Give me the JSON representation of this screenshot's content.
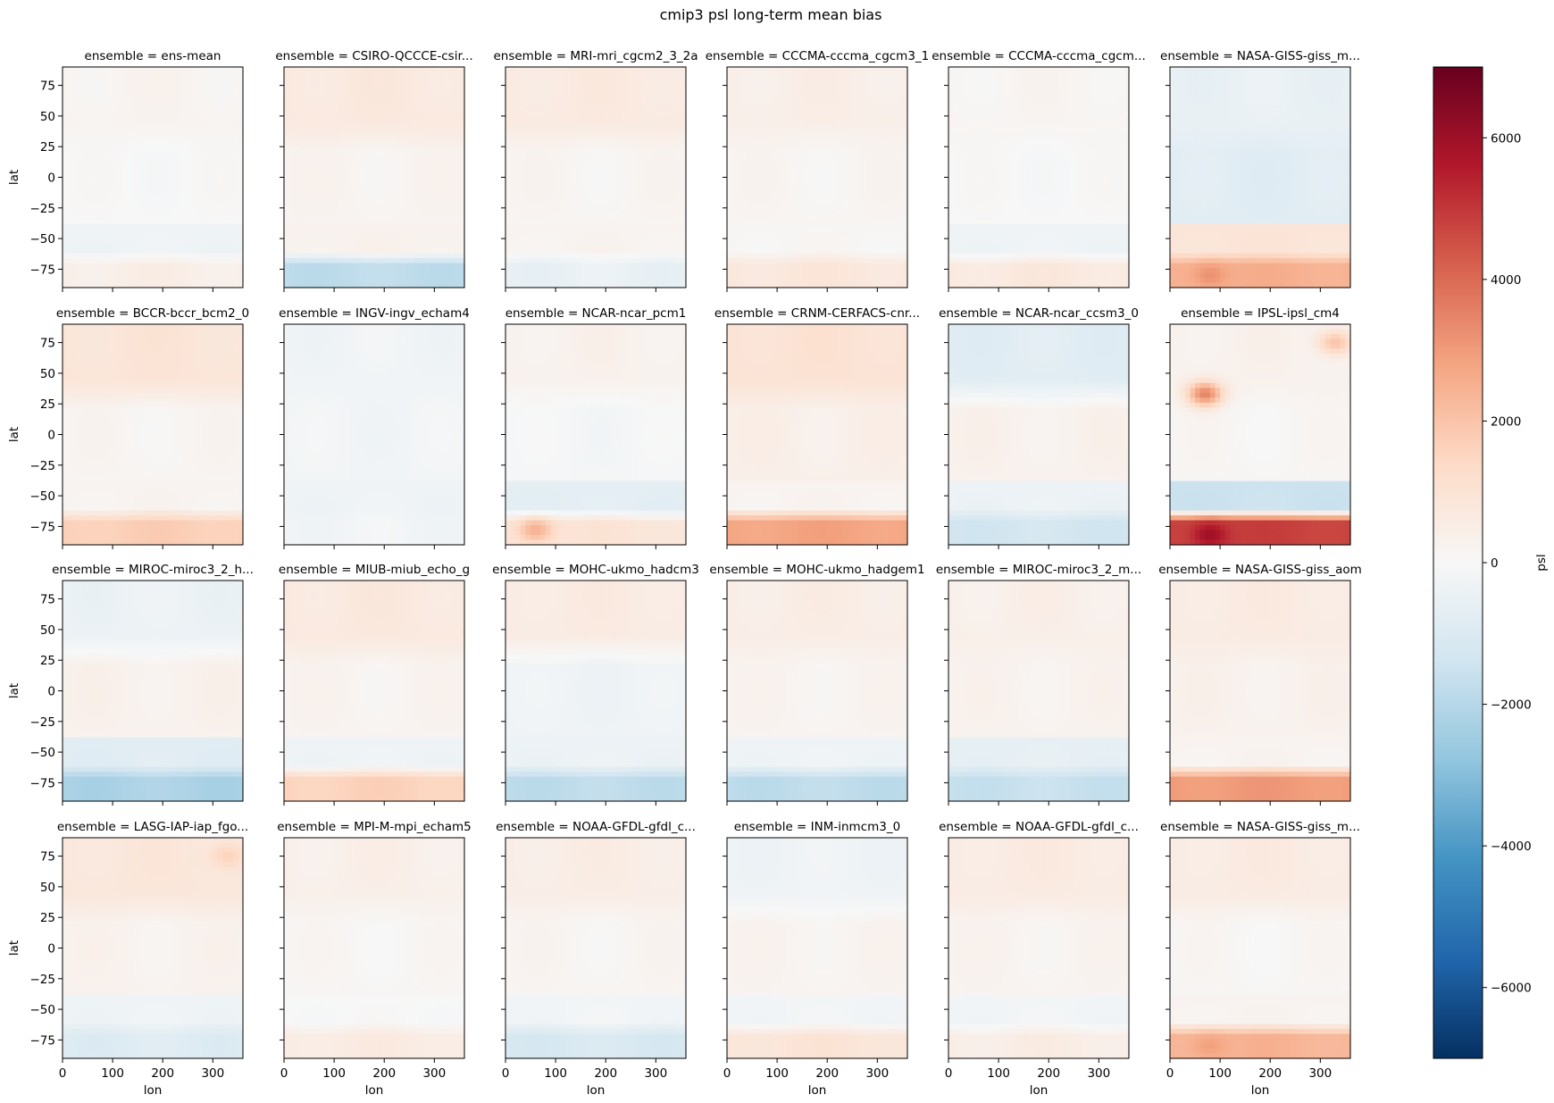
{
  "figure": {
    "title": "cmip3 psl long-term mean bias"
  },
  "chart_data": {
    "type": "heatmap",
    "layout": "facet-grid",
    "rows": 4,
    "cols": 6,
    "facet_variable": "ensemble",
    "xlabel": "lon",
    "ylabel": "lat",
    "xlim": [
      0,
      360
    ],
    "ylim": [
      -90,
      90
    ],
    "x_ticks": [
      0,
      100,
      200,
      300
    ],
    "y_ticks": [
      75,
      50,
      25,
      0,
      -25,
      -50,
      -75
    ],
    "colorbar": {
      "label": "psl",
      "cmap": "RdBu_r",
      "vmin": -7000,
      "vmax": 7000,
      "ticks": [
        6000,
        4000,
        2000,
        0,
        -2000,
        -4000,
        -6000
      ],
      "tick_labels": [
        "6000",
        "4000",
        "2000",
        "0",
        "−2000",
        "−4000",
        "−6000"
      ],
      "colors": [
        "#053061",
        "#2166ac",
        "#4393c3",
        "#92c5de",
        "#d1e5f0",
        "#f7f7f7",
        "#fddbc7",
        "#f4a582",
        "#d6604d",
        "#b2182b",
        "#67001f"
      ]
    },
    "panels": [
      {
        "title": "ensemble = ens-mean",
        "bands": {
          "n": 200,
          "mid": 0,
          "s": -300,
          "sp": 450
        },
        "hot": []
      },
      {
        "title": "ensemble = CSIRO-QCCCE-csir...",
        "bands": {
          "n": 700,
          "mid": 200,
          "s": 300,
          "sp": -1800
        },
        "hot": []
      },
      {
        "title": "ensemble = MRI-mri_cgcm2_3_2a",
        "bands": {
          "n": 650,
          "mid": 150,
          "s": 200,
          "sp": -500
        },
        "hot": []
      },
      {
        "title": "ensemble = CCCMA-cccma_cgcm3_1",
        "bands": {
          "n": 450,
          "mid": 150,
          "s": 100,
          "sp": 800
        },
        "hot": []
      },
      {
        "title": "ensemble = CCCMA-cccma_cgcm...",
        "bands": {
          "n": 150,
          "mid": 0,
          "s": -300,
          "sp": 700
        },
        "hot": []
      },
      {
        "title": "ensemble = NASA-GISS-giss_m...",
        "bands": {
          "n": -500,
          "mid": -800,
          "s": 900,
          "sp": 2500
        },
        "hot": [
          {
            "lon": 80,
            "lat": -80,
            "v": 3200
          }
        ]
      },
      {
        "title": "ensemble = BCCR-bccr_bcm2_0",
        "bands": {
          "n": 900,
          "mid": 150,
          "s": 200,
          "sp": 1700
        },
        "hot": []
      },
      {
        "title": "ensemble = INGV-ingv_echam4",
        "bands": {
          "n": -250,
          "mid": -200,
          "s": -300,
          "sp": -200
        },
        "hot": []
      },
      {
        "title": "ensemble = NCAR-ncar_pcm1",
        "bands": {
          "n": 300,
          "mid": -100,
          "s": -700,
          "sp": 900
        },
        "hot": [
          {
            "lon": 60,
            "lat": -78,
            "v": 2500
          }
        ]
      },
      {
        "title": "ensemble = CRNM-CERFACS-cnr...",
        "bands": {
          "n": 1000,
          "mid": 400,
          "s": 200,
          "sp": 2800
        },
        "hot": []
      },
      {
        "title": "ensemble = NCAR-ncar_ccsm3_0",
        "bands": {
          "n": -800,
          "mid": 300,
          "s": -400,
          "sp": -1300
        },
        "hot": []
      },
      {
        "title": "ensemble = IPSL-ipsl_cm4",
        "bands": {
          "n": 300,
          "mid": 100,
          "s": -1500,
          "sp": 4800
        },
        "hot": [
          {
            "lon": 80,
            "lat": -82,
            "v": 6000
          },
          {
            "lon": 70,
            "lat": 33,
            "v": 3500
          },
          {
            "lon": 330,
            "lat": 75,
            "v": 2000
          }
        ]
      },
      {
        "title": "ensemble = MIROC-miroc3_2_h...",
        "bands": {
          "n": -400,
          "mid": 300,
          "s": -800,
          "sp": -2200
        },
        "hot": []
      },
      {
        "title": "ensemble = MIUB-miub_echo_g",
        "bands": {
          "n": 700,
          "mid": 200,
          "s": -300,
          "sp": 1600
        },
        "hot": []
      },
      {
        "title": "ensemble = MOHC-ukmo_hadcm3",
        "bands": {
          "n": 600,
          "mid": -300,
          "s": -400,
          "sp": -1800
        },
        "hot": []
      },
      {
        "title": "ensemble = MOHC-ukmo_hadgem1",
        "bands": {
          "n": 500,
          "mid": 200,
          "s": -300,
          "sp": -1800
        },
        "hot": []
      },
      {
        "title": "ensemble = MIROC-miroc3_2_m...",
        "bands": {
          "n": 400,
          "mid": 250,
          "s": -600,
          "sp": -1600
        },
        "hot": []
      },
      {
        "title": "ensemble = NASA-GISS-giss_aom",
        "bands": {
          "n": 600,
          "mid": 300,
          "s": 200,
          "sp": 3000
        },
        "hot": []
      },
      {
        "title": "ensemble = LASG-IAP-iap_fgo...",
        "bands": {
          "n": 800,
          "mid": 250,
          "s": -300,
          "sp": -900
        },
        "hot": [
          {
            "lon": 330,
            "lat": 75,
            "v": 1600
          }
        ]
      },
      {
        "title": "ensemble = MPI-M-mpi_echam5",
        "bands": {
          "n": 400,
          "mid": 100,
          "s": 0,
          "sp": 600
        },
        "hot": []
      },
      {
        "title": "ensemble = NOAA-GFDL-gfdl_c...",
        "bands": {
          "n": 500,
          "mid": 150,
          "s": -200,
          "sp": -1100
        },
        "hot": []
      },
      {
        "title": "ensemble = INM-inmcm3_0",
        "bands": {
          "n": -300,
          "mid": 200,
          "s": -200,
          "sp": 900
        },
        "hot": []
      },
      {
        "title": "ensemble = NOAA-GFDL-gfdl_c...",
        "bands": {
          "n": 600,
          "mid": 200,
          "s": -200,
          "sp": 500
        },
        "hot": []
      },
      {
        "title": "ensemble = NASA-GISS-giss_m...",
        "bands": {
          "n": 600,
          "mid": 100,
          "s": 200,
          "sp": 2400
        },
        "hot": [
          {
            "lon": 80,
            "lat": -80,
            "v": 2900
          }
        ]
      }
    ]
  }
}
